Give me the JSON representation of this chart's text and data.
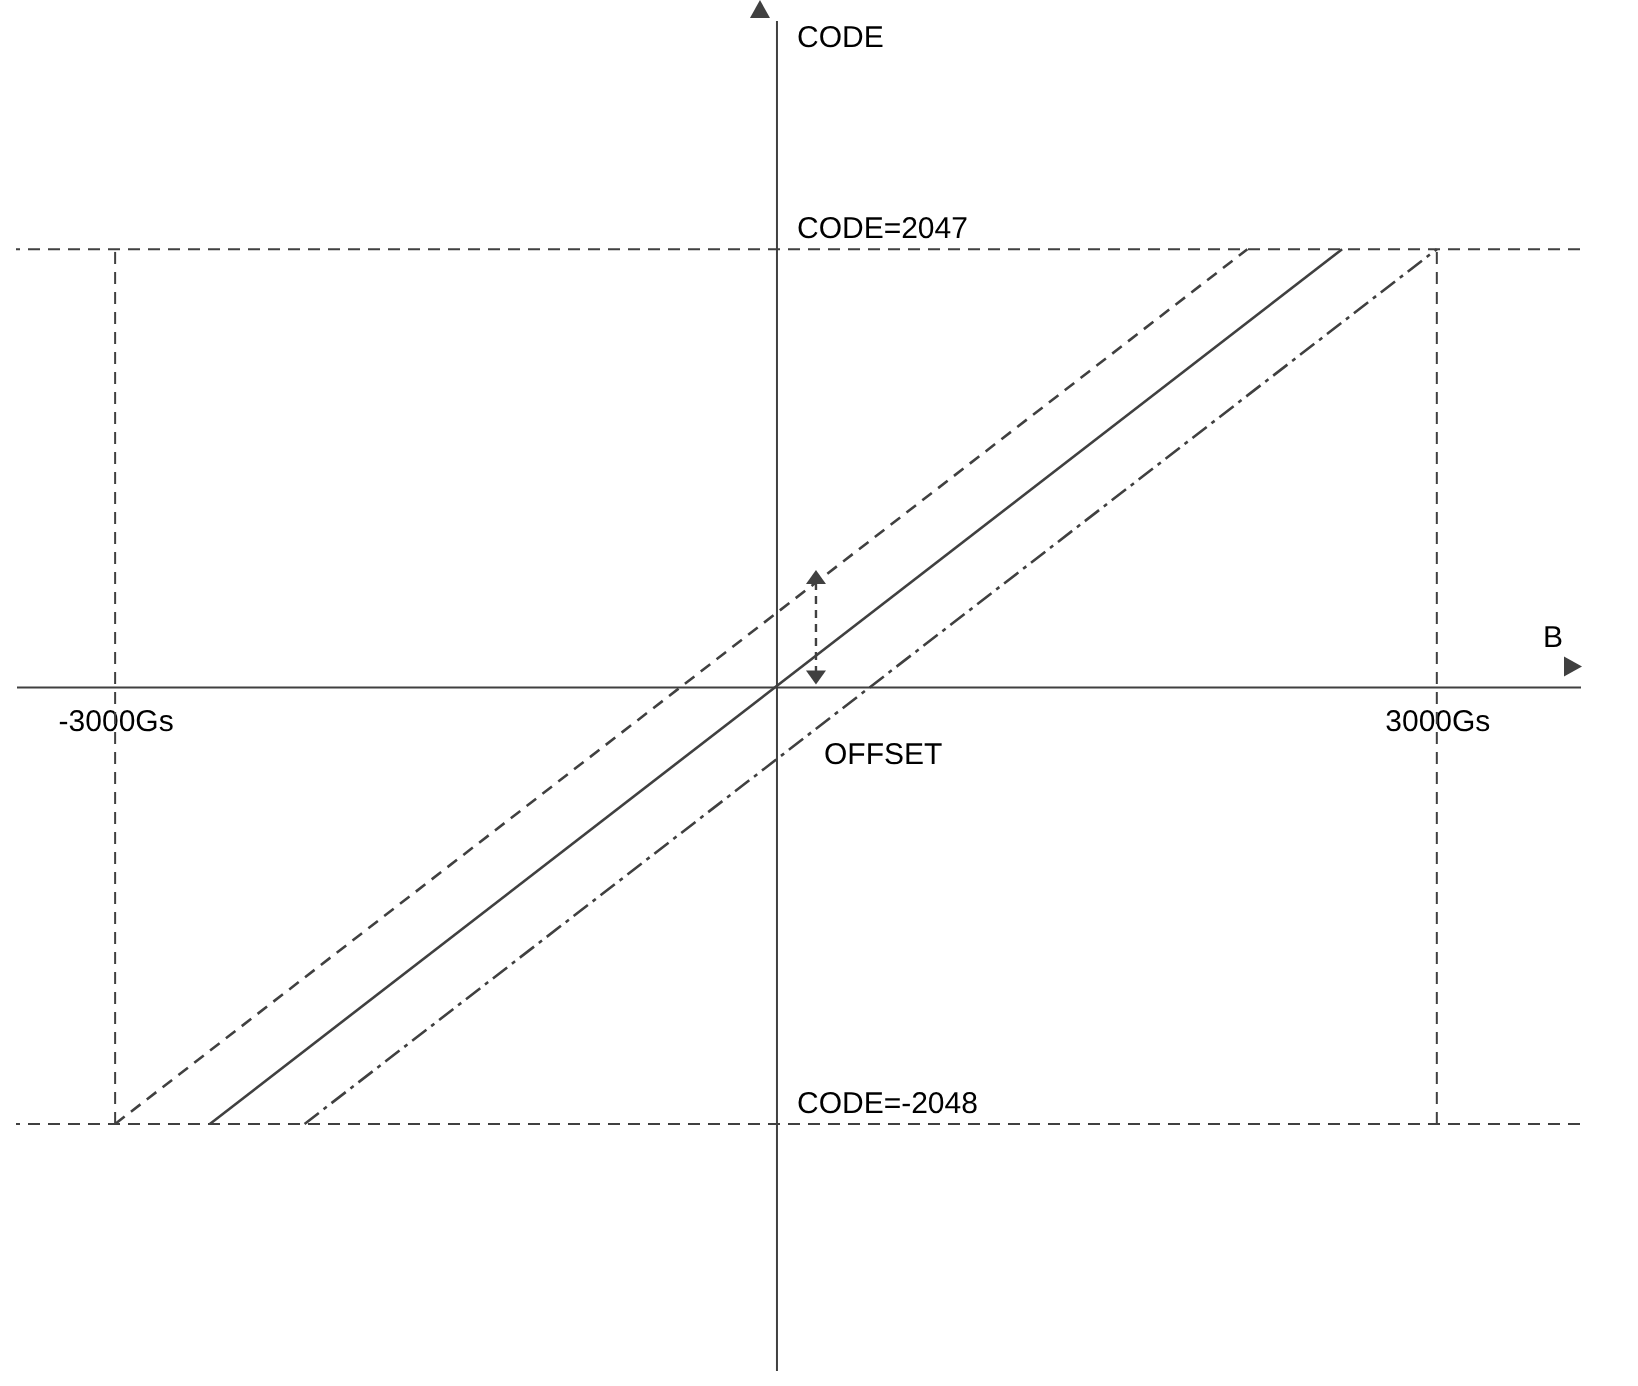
{
  "chart_data": {
    "type": "line",
    "xlabel": "B",
    "ylabel": "CODE",
    "xlim": [
      -3450,
      3650
    ],
    "ylim": [
      -3200,
      3120
    ],
    "xticks": [
      {
        "value": -3000,
        "label": "-3000Gs"
      },
      {
        "value": 3000,
        "label": "3000Gs"
      }
    ],
    "yticks": [
      {
        "value": 2047,
        "label": "CODE=2047"
      },
      {
        "value": -2048,
        "label": "CODE=-2048"
      }
    ],
    "series": [
      {
        "color": "#404040",
        "line_style": "dashed",
        "x": [
          -3000,
          2140
        ],
        "values": [
          -2048,
          2047
        ]
      },
      {
        "color": "#404040",
        "line_style": "solid",
        "x": [
          -2570,
          2570
        ],
        "values": [
          -2048,
          2047
        ]
      },
      {
        "color": "#404040",
        "line_style": "dashdot",
        "x": [
          -2140,
          3000
        ],
        "values": [
          -2048,
          2047
        ]
      }
    ],
    "ref_lines": [
      {
        "axis": "y",
        "value": 2047,
        "color": "#404040",
        "line_style": "dashed"
      },
      {
        "axis": "y",
        "value": -2048,
        "color": "#404040",
        "line_style": "dashed"
      },
      {
        "axis": "x",
        "value": -3000,
        "color": "#404040",
        "line_style": "dashed"
      },
      {
        "axis": "x",
        "value": 3000,
        "color": "#404040",
        "line_style": "dashed"
      }
    ],
    "annotations": [
      "OFFSET"
    ]
  }
}
